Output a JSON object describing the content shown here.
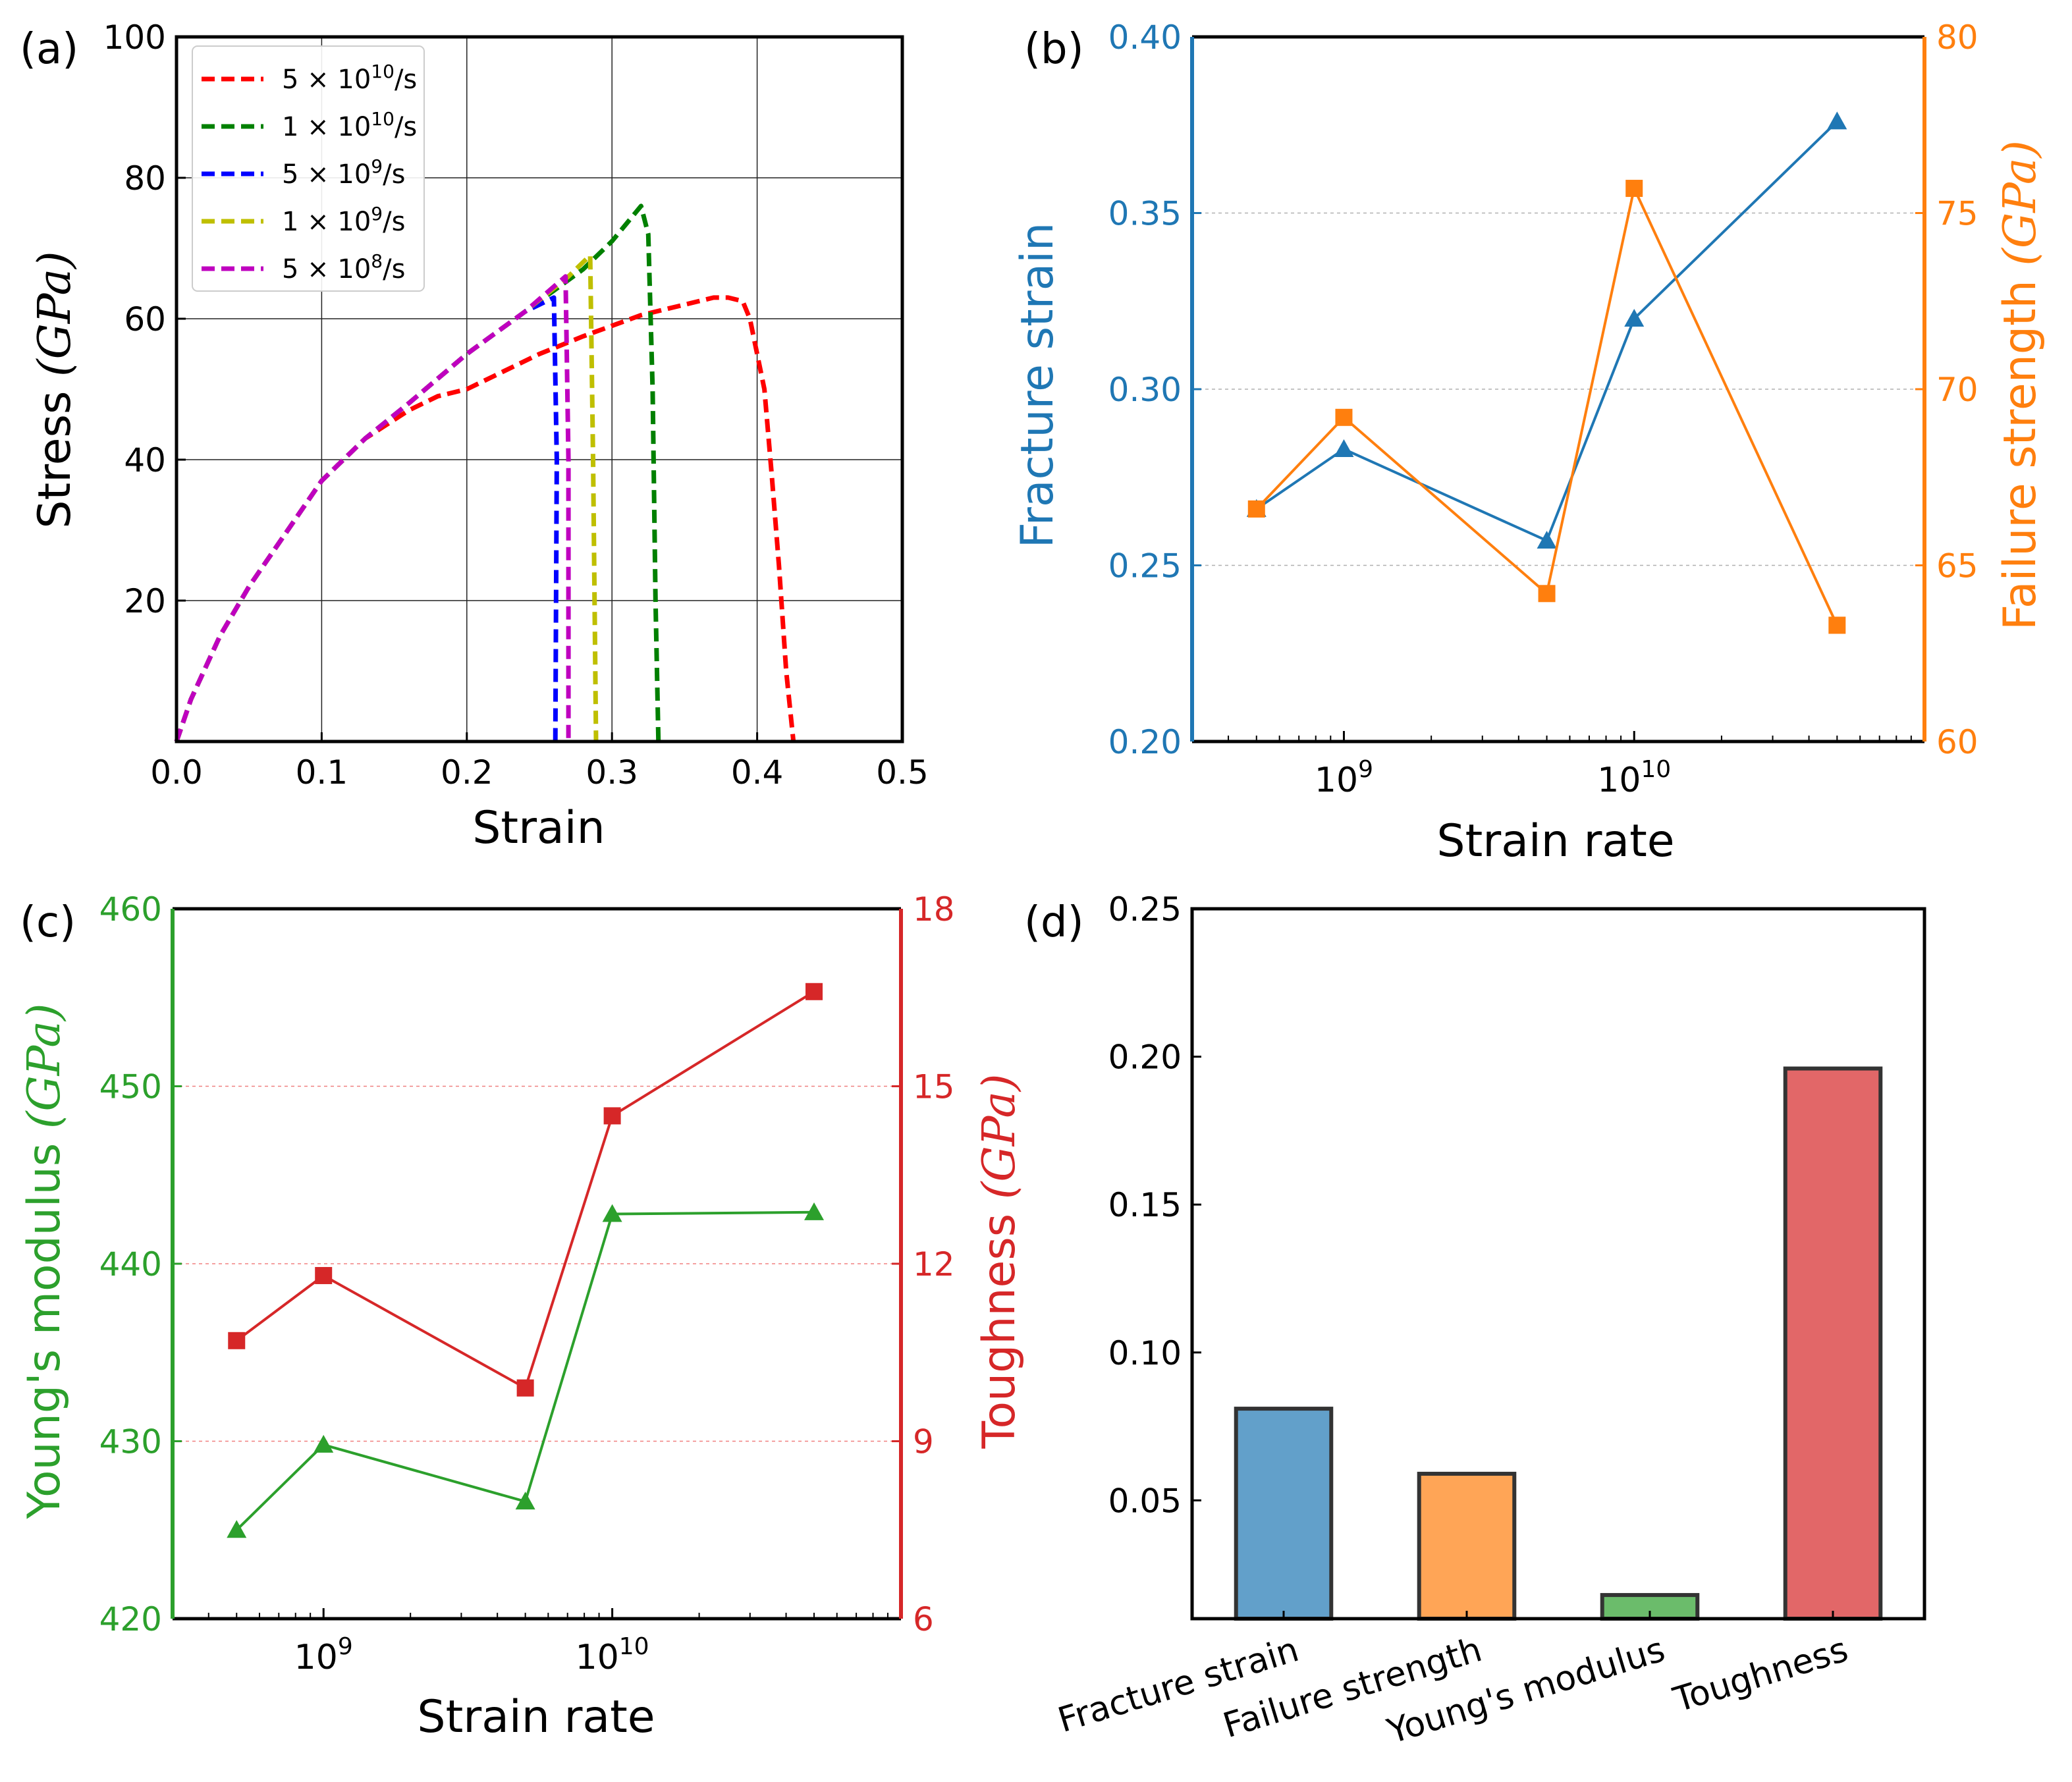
{
  "chart_data": [
    {
      "panel_label": "(a)",
      "type": "line",
      "xlabel": "Strain",
      "ylabel_prefix": "Stress ",
      "ylabel_unit": "(GPa)",
      "xlim": [
        0,
        0.5
      ],
      "ylim": [
        0,
        100
      ],
      "xticks": [
        "0.0",
        "0.1",
        "0.2",
        "0.3",
        "0.4",
        "0.5"
      ],
      "yticks": [
        "20",
        "40",
        "60",
        "80",
        "100"
      ],
      "grid": true,
      "legend_position": "top-left",
      "series": [
        {
          "name": "5 × 10¹⁰/s",
          "mantissa": "5 ×",
          "base": "10",
          "exp": "10",
          "unit": "/s",
          "color": "#ff0000",
          "x": [
            0,
            0.01,
            0.03,
            0.05,
            0.08,
            0.1,
            0.13,
            0.16,
            0.18,
            0.2,
            0.22,
            0.25,
            0.28,
            0.3,
            0.32,
            0.35,
            0.37,
            0.38,
            0.39,
            0.395,
            0.4,
            0.405,
            0.41,
            0.415,
            0.42,
            0.425
          ],
          "y": [
            0,
            6,
            15,
            22,
            31,
            37,
            43,
            47,
            49,
            50,
            52,
            55,
            57.5,
            59,
            60.5,
            62,
            63,
            63,
            62.5,
            60,
            55,
            50,
            38,
            25,
            10,
            0
          ]
        },
        {
          "name": "1 × 10¹⁰/s",
          "mantissa": "1 ×",
          "base": "10",
          "exp": "10",
          "unit": "/s",
          "color": "#008000",
          "x": [
            0,
            0.01,
            0.03,
            0.05,
            0.08,
            0.1,
            0.13,
            0.16,
            0.2,
            0.24,
            0.28,
            0.3,
            0.31,
            0.32,
            0.325,
            0.328,
            0.33,
            0.332
          ],
          "y": [
            0,
            6,
            15,
            22,
            31,
            37,
            43,
            48,
            55,
            61,
            67,
            71,
            73.5,
            76,
            72,
            50,
            20,
            0
          ]
        },
        {
          "name": "5 × 10⁹/s",
          "mantissa": "5 ×",
          "base": "10",
          "exp": "9",
          "unit": "/s",
          "color": "#0000ff",
          "x": [
            0,
            0.01,
            0.03,
            0.05,
            0.08,
            0.1,
            0.13,
            0.16,
            0.2,
            0.24,
            0.26,
            0.262,
            0.261
          ],
          "y": [
            0,
            6,
            15,
            22,
            31,
            37,
            43,
            48,
            55,
            61,
            63,
            40,
            0
          ]
        },
        {
          "name": "1 × 10⁹/s",
          "mantissa": "1 ×",
          "base": "10",
          "exp": "9",
          "unit": "/s",
          "color": "#bfbf00",
          "x": [
            0,
            0.01,
            0.03,
            0.05,
            0.08,
            0.1,
            0.13,
            0.16,
            0.2,
            0.24,
            0.27,
            0.285,
            0.287,
            0.289
          ],
          "y": [
            0,
            6,
            15,
            22,
            31,
            37,
            43,
            48,
            55,
            61,
            66,
            69,
            40,
            0
          ]
        },
        {
          "name": "5 × 10⁸/s",
          "mantissa": "5 ×",
          "base": "10",
          "exp": "8",
          "unit": "/s",
          "color": "#bf00bf",
          "x": [
            0,
            0.01,
            0.03,
            0.05,
            0.08,
            0.1,
            0.13,
            0.16,
            0.2,
            0.24,
            0.268,
            0.27,
            0.27
          ],
          "y": [
            0,
            6,
            15,
            22,
            31,
            37,
            43,
            48,
            55,
            61,
            66,
            40,
            0
          ]
        }
      ]
    },
    {
      "panel_label": "(b)",
      "type": "line",
      "xlabel": "Strain rate",
      "x_scale": "log",
      "xlim": [
        300000000,
        100000000000
      ],
      "xtick_values": [
        1000000000,
        10000000000
      ],
      "xtick_exps": [
        "9",
        "10"
      ],
      "x": [
        500000000,
        1000000000,
        5000000000,
        10000000000,
        50000000000
      ],
      "left_axis": {
        "label": "Fracture strain",
        "color": "#1f77b4",
        "lim": [
          0.2,
          0.4
        ],
        "ticks": [
          "0.20",
          "0.25",
          "0.30",
          "0.35",
          "0.40"
        ]
      },
      "right_axis": {
        "label_prefix": "Failure strength ",
        "label_unit": "(GPa)",
        "color": "#ff7f0e",
        "lim": [
          60,
          80
        ],
        "ticks": [
          "60",
          "65",
          "70",
          "75",
          "80"
        ]
      },
      "series": [
        {
          "name": "Fracture strain",
          "axis": "left",
          "marker": "triangle",
          "color": "#1f77b4",
          "values": [
            0.266,
            0.283,
            0.257,
            0.32,
            0.376
          ]
        },
        {
          "name": "Failure strength",
          "axis": "right",
          "marker": "square",
          "color": "#ff7f0e",
          "values": [
            66.6,
            69.2,
            64.2,
            75.7,
            63.3
          ]
        }
      ]
    },
    {
      "panel_label": "(c)",
      "type": "line",
      "xlabel": "Strain rate",
      "x_scale": "log",
      "xlim": [
        300000000,
        100000000000
      ],
      "xtick_values": [
        1000000000,
        10000000000
      ],
      "xtick_exps": [
        "9",
        "10"
      ],
      "x": [
        500000000,
        1000000000,
        5000000000,
        10000000000,
        50000000000
      ],
      "left_axis": {
        "label_prefix": "Young's modulus ",
        "label_unit": "(GPa)",
        "color": "#2ca02c",
        "lim": [
          420,
          460
        ],
        "ticks": [
          "420",
          "430",
          "440",
          "450",
          "460"
        ]
      },
      "right_axis": {
        "label_prefix": "Toughness ",
        "label_unit": "(GPa)",
        "color": "#d62728",
        "lim": [
          6,
          18
        ],
        "ticks": [
          "6",
          "9",
          "12",
          "15",
          "18"
        ]
      },
      "series": [
        {
          "name": "Young's modulus",
          "axis": "left",
          "marker": "triangle",
          "color": "#2ca02c",
          "values": [
            425,
            429.8,
            426.6,
            442.8,
            442.9
          ]
        },
        {
          "name": "Toughness",
          "axis": "right",
          "marker": "square",
          "color": "#d62728",
          "values": [
            10.7,
            11.8,
            9.9,
            14.5,
            16.6
          ]
        }
      ]
    },
    {
      "panel_label": "(d)",
      "type": "bar",
      "categories": [
        "Fracture strain",
        "Failure strength",
        "Young's modulus",
        "Toughness"
      ],
      "values": [
        0.081,
        0.059,
        0.018,
        0.196
      ],
      "colors": [
        "#1f77b4",
        "#ff7f0e",
        "#2ca02c",
        "#d62728"
      ],
      "ylim": [
        0.01,
        0.25
      ],
      "yticks": [
        "0.05",
        "0.10",
        "0.15",
        "0.20",
        "0.25"
      ],
      "ytick_values": [
        0.05,
        0.1,
        0.15,
        0.2,
        0.25
      ]
    }
  ]
}
